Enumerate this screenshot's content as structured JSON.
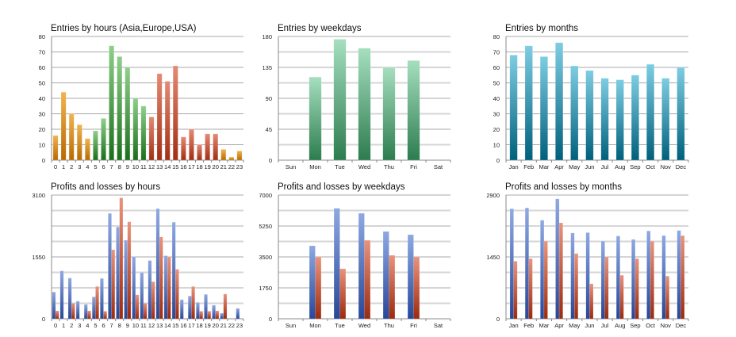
{
  "chart_data": [
    {
      "type": "bar",
      "title": "Entries by hours (Asia,Europe,USA)",
      "categories": [
        "0",
        "1",
        "2",
        "3",
        "4",
        "5",
        "6",
        "7",
        "8",
        "9",
        "10",
        "11",
        "12",
        "13",
        "14",
        "15",
        "16",
        "17",
        "18",
        "19",
        "20",
        "21",
        "22",
        "23"
      ],
      "values": [
        16,
        44,
        30,
        23,
        14,
        19,
        27,
        74,
        67,
        60,
        40,
        35,
        28,
        56,
        51,
        61,
        15,
        20,
        10,
        17,
        17,
        7,
        2,
        6
      ],
      "bar_colors": [
        "orange",
        "orange",
        "orange",
        "orange",
        "orange",
        "green",
        "green",
        "green",
        "green",
        "green",
        "green",
        "green",
        "red",
        "red",
        "red",
        "red",
        "red",
        "red",
        "red",
        "red",
        "red",
        "orange",
        "orange",
        "orange"
      ],
      "ylim": [
        0,
        80
      ],
      "yticks": [
        0,
        10,
        20,
        30,
        40,
        50,
        60,
        70,
        80
      ],
      "grid": true
    },
    {
      "type": "bar",
      "title": "Entries by weekdays",
      "categories": [
        "Sun",
        "Mon",
        "Tue",
        "Wed",
        "Thu",
        "Fri",
        "Sat"
      ],
      "values": [
        0,
        121,
        176,
        163,
        135,
        145,
        0
      ],
      "color": "#3f9a68",
      "ylim": [
        0,
        180
      ],
      "yticks": [
        0,
        45,
        90,
        135,
        180
      ],
      "grid": true
    },
    {
      "type": "bar",
      "title": "Entries by months",
      "categories": [
        "Jan",
        "Feb",
        "Mar",
        "Apr",
        "May",
        "Jun",
        "Jul",
        "Aug",
        "Sep",
        "Oct",
        "Nov",
        "Dec"
      ],
      "values": [
        68,
        74,
        67,
        76,
        61,
        58,
        53,
        52,
        55,
        62,
        53,
        60
      ],
      "color": "#1f8aa6",
      "ylim": [
        0,
        80
      ],
      "yticks": [
        0,
        10,
        20,
        30,
        40,
        50,
        60,
        70,
        80
      ],
      "grid": true
    },
    {
      "type": "bar",
      "title": "Profits and losses by hours",
      "categories": [
        "0",
        "1",
        "2",
        "3",
        "4",
        "5",
        "6",
        "7",
        "8",
        "9",
        "10",
        "11",
        "12",
        "13",
        "14",
        "15",
        "16",
        "17",
        "18",
        "19",
        "20",
        "21",
        "22",
        "23"
      ],
      "series": [
        {
          "color": "#4a6fc0",
          "values": [
            670,
            1200,
            1020,
            440,
            360,
            550,
            1010,
            2640,
            2300,
            1970,
            1560,
            1160,
            1460,
            2760,
            1580,
            2420,
            480,
            570,
            410,
            610,
            340,
            140,
            0,
            260
          ]
        },
        {
          "color": "#c8472a",
          "values": [
            200,
            0,
            390,
            0,
            200,
            810,
            190,
            1730,
            3030,
            2430,
            600,
            390,
            930,
            2050,
            1550,
            1240,
            0,
            810,
            190,
            190,
            200,
            620,
            0,
            0
          ]
        }
      ],
      "ylim": [
        0,
        3100
      ],
      "yticks": [
        0,
        1550,
        3100
      ],
      "grid": true
    },
    {
      "type": "bar",
      "title": "Profits and losses by weekdays",
      "categories": [
        "Sun",
        "Mon",
        "Tue",
        "Wed",
        "Thu",
        "Fri",
        "Sat"
      ],
      "series": [
        {
          "color": "#4a6fc0",
          "values": [
            0,
            4130,
            6250,
            5970,
            4940,
            4760,
            0
          ]
        },
        {
          "color": "#c8472a",
          "values": [
            0,
            3490,
            2830,
            4440,
            3590,
            3490,
            0
          ]
        }
      ],
      "ylim": [
        0,
        7000
      ],
      "yticks": [
        0,
        1750,
        3500,
        5250,
        7000
      ],
      "grid": true
    },
    {
      "type": "bar",
      "title": "Profits and losses by months",
      "categories": [
        "Jan",
        "Feb",
        "Mar",
        "Apr",
        "May",
        "Jun",
        "Jul",
        "Aug",
        "Sep",
        "Oct",
        "Nov",
        "Dec"
      ],
      "series": [
        {
          "color": "#4a6fc0",
          "values": [
            2580,
            2600,
            2310,
            2810,
            2010,
            2020,
            1820,
            1940,
            1860,
            2060,
            1950,
            2070
          ]
        },
        {
          "color": "#c8472a",
          "values": [
            1350,
            1410,
            1820,
            2250,
            1530,
            820,
            1450,
            1020,
            1410,
            1820,
            1000,
            1950
          ]
        }
      ],
      "ylim": [
        0,
        2900
      ],
      "yticks": [
        0,
        1450,
        2900
      ],
      "grid": true
    }
  ]
}
